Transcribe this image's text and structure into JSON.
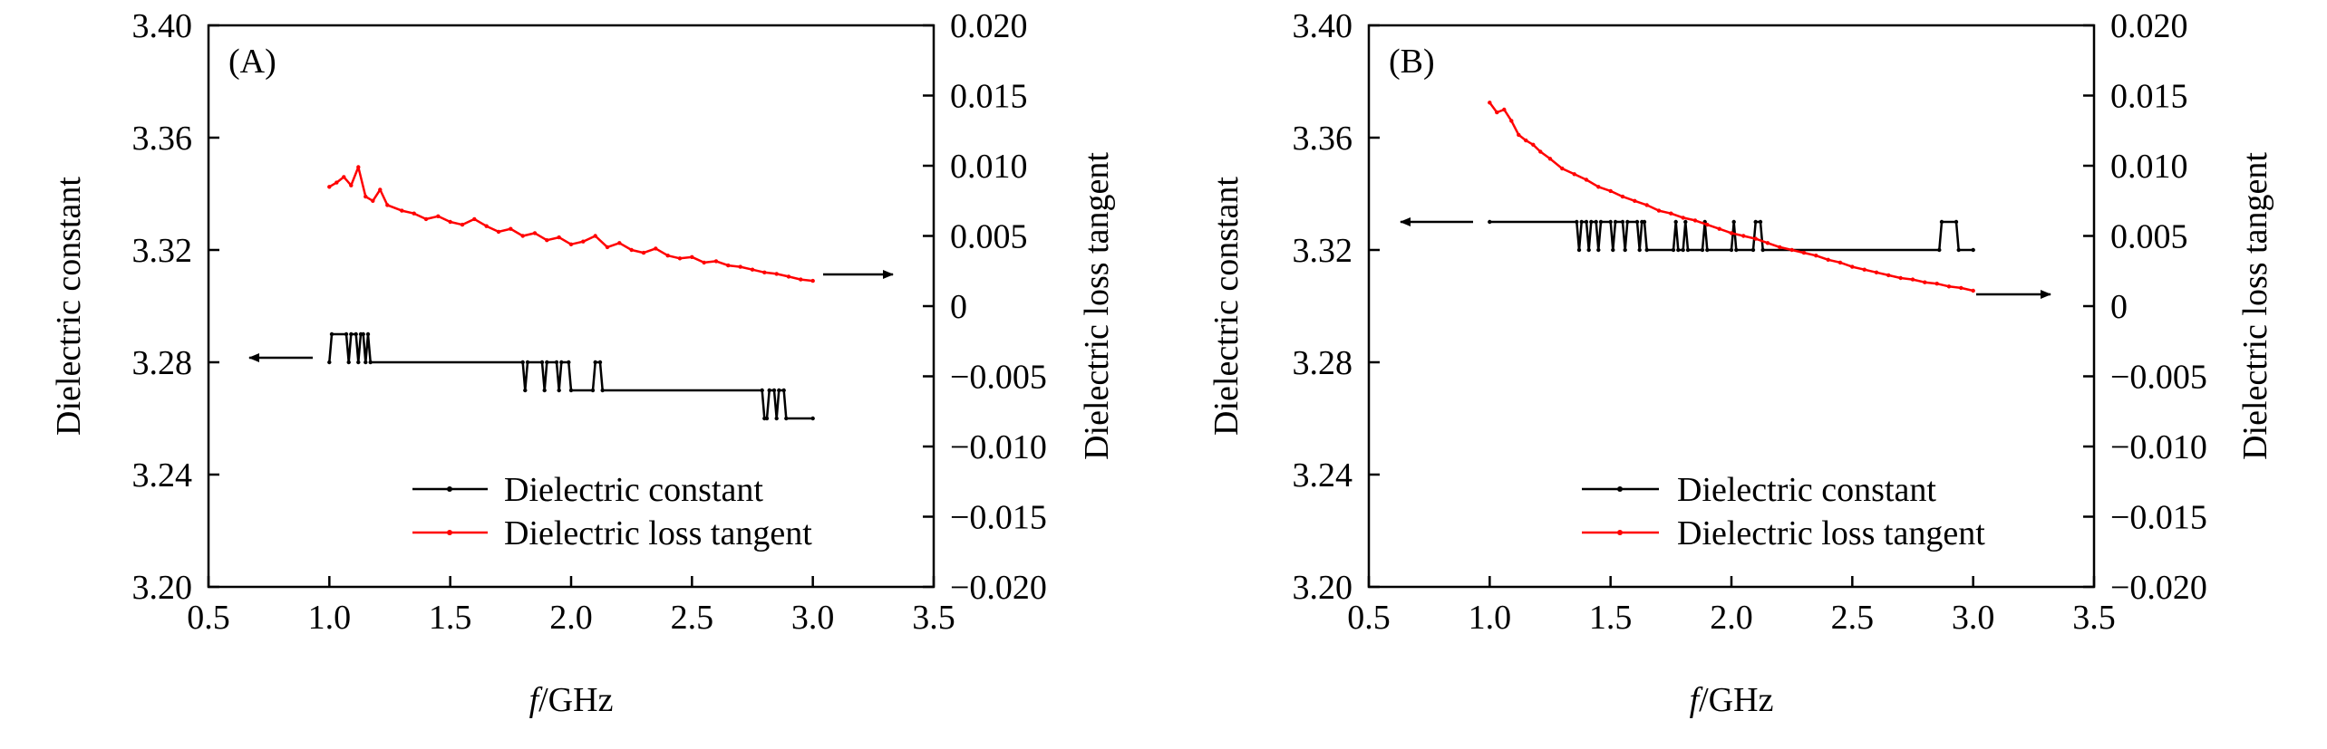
{
  "chart_data": [
    {
      "type": "line",
      "panel_label": "(A)",
      "xlabel_italic": "f",
      "xlabel_rest": "/GHz",
      "ylabel": "Dielectric constant",
      "y2label": "Dielectric loss tangent",
      "xlim": [
        0.5,
        3.5
      ],
      "ylim": [
        3.2,
        3.4
      ],
      "y2lim": [
        -0.02,
        0.02
      ],
      "xticks": [
        "0.5",
        "1.0",
        "1.5",
        "2.0",
        "2.5",
        "3.0",
        "3.5"
      ],
      "yticks": [
        "3.20",
        "3.24",
        "3.28",
        "3.32",
        "3.36",
        "3.40"
      ],
      "y2ticks": [
        "−0.020",
        "−0.015",
        "−0.010",
        "−0.005",
        "0",
        "0.005",
        "0.010",
        "0.015",
        "0.020"
      ],
      "legend_position": "lower-right",
      "series": [
        {
          "name": "Dielectric constant",
          "axis": "left",
          "color": "#000000",
          "points": [
            [
              1.0,
              3.28
            ],
            [
              1.01,
              3.29
            ],
            [
              1.07,
              3.29
            ],
            [
              1.08,
              3.28
            ],
            [
              1.09,
              3.29
            ],
            [
              1.11,
              3.29
            ],
            [
              1.12,
              3.28
            ],
            [
              1.13,
              3.29
            ],
            [
              1.14,
              3.29
            ],
            [
              1.15,
              3.28
            ],
            [
              1.16,
              3.29
            ],
            [
              1.17,
              3.28
            ],
            [
              1.8,
              3.28
            ],
            [
              1.81,
              3.27
            ],
            [
              1.82,
              3.28
            ],
            [
              1.88,
              3.28
            ],
            [
              1.89,
              3.27
            ],
            [
              1.9,
              3.28
            ],
            [
              1.94,
              3.28
            ],
            [
              1.95,
              3.27
            ],
            [
              1.96,
              3.28
            ],
            [
              1.99,
              3.28
            ],
            [
              2.0,
              3.27
            ],
            [
              2.09,
              3.27
            ],
            [
              2.1,
              3.28
            ],
            [
              2.12,
              3.28
            ],
            [
              2.13,
              3.27
            ],
            [
              2.79,
              3.27
            ],
            [
              2.8,
              3.26
            ],
            [
              2.81,
              3.26
            ],
            [
              2.82,
              3.27
            ],
            [
              2.84,
              3.27
            ],
            [
              2.85,
              3.26
            ],
            [
              2.86,
              3.27
            ],
            [
              2.88,
              3.27
            ],
            [
              2.89,
              3.26
            ],
            [
              3.0,
              3.26
            ]
          ]
        },
        {
          "name": "Dielectric loss tangent",
          "axis": "right",
          "color": "#ff0000",
          "points": [
            [
              1.0,
              0.0085
            ],
            [
              1.03,
              0.0088
            ],
            [
              1.06,
              0.0092
            ],
            [
              1.09,
              0.0086
            ],
            [
              1.12,
              0.0099
            ],
            [
              1.15,
              0.0078
            ],
            [
              1.18,
              0.0075
            ],
            [
              1.21,
              0.0083
            ],
            [
              1.24,
              0.0072
            ],
            [
              1.3,
              0.0068
            ],
            [
              1.35,
              0.0066
            ],
            [
              1.4,
              0.0062
            ],
            [
              1.45,
              0.0064
            ],
            [
              1.5,
              0.006
            ],
            [
              1.55,
              0.0058
            ],
            [
              1.6,
              0.0062
            ],
            [
              1.65,
              0.0057
            ],
            [
              1.7,
              0.0053
            ],
            [
              1.75,
              0.0055
            ],
            [
              1.8,
              0.005
            ],
            [
              1.85,
              0.0052
            ],
            [
              1.9,
              0.0047
            ],
            [
              1.95,
              0.0049
            ],
            [
              2.0,
              0.0044
            ],
            [
              2.05,
              0.0046
            ],
            [
              2.1,
              0.005
            ],
            [
              2.15,
              0.0042
            ],
            [
              2.2,
              0.0045
            ],
            [
              2.25,
              0.004
            ],
            [
              2.3,
              0.0038
            ],
            [
              2.35,
              0.0041
            ],
            [
              2.4,
              0.0036
            ],
            [
              2.45,
              0.0034
            ],
            [
              2.5,
              0.0035
            ],
            [
              2.55,
              0.0031
            ],
            [
              2.6,
              0.0032
            ],
            [
              2.65,
              0.0029
            ],
            [
              2.7,
              0.0028
            ],
            [
              2.75,
              0.0026
            ],
            [
              2.8,
              0.0024
            ],
            [
              2.85,
              0.0023
            ],
            [
              2.9,
              0.0021
            ],
            [
              2.95,
              0.0019
            ],
            [
              3.0,
              0.0018
            ]
          ]
        }
      ]
    },
    {
      "type": "line",
      "panel_label": "(B)",
      "xlabel_italic": "f",
      "xlabel_rest": "/GHz",
      "ylabel": "Dielectric constant",
      "y2label": "Dielectric loss tangent",
      "xlim": [
        0.5,
        3.5
      ],
      "ylim": [
        3.2,
        3.4
      ],
      "y2lim": [
        -0.02,
        0.02
      ],
      "xticks": [
        "0.5",
        "1.0",
        "1.5",
        "2.0",
        "2.5",
        "3.0",
        "3.5"
      ],
      "yticks": [
        "3.20",
        "3.24",
        "3.28",
        "3.32",
        "3.36",
        "3.40"
      ],
      "y2ticks": [
        "−0.020",
        "−0.015",
        "−0.010",
        "−0.005",
        "0",
        "0.005",
        "0.010",
        "0.015",
        "0.020"
      ],
      "legend_position": "lower-right",
      "series": [
        {
          "name": "Dielectric constant",
          "axis": "left",
          "color": "#000000",
          "points": [
            [
              1.0,
              3.33
            ],
            [
              1.36,
              3.33
            ],
            [
              1.37,
              3.32
            ],
            [
              1.38,
              3.33
            ],
            [
              1.4,
              3.33
            ],
            [
              1.41,
              3.32
            ],
            [
              1.42,
              3.33
            ],
            [
              1.44,
              3.33
            ],
            [
              1.45,
              3.32
            ],
            [
              1.46,
              3.33
            ],
            [
              1.5,
              3.33
            ],
            [
              1.51,
              3.32
            ],
            [
              1.52,
              3.33
            ],
            [
              1.55,
              3.33
            ],
            [
              1.56,
              3.32
            ],
            [
              1.57,
              3.33
            ],
            [
              1.61,
              3.33
            ],
            [
              1.62,
              3.32
            ],
            [
              1.63,
              3.33
            ],
            [
              1.64,
              3.33
            ],
            [
              1.65,
              3.32
            ],
            [
              1.76,
              3.32
            ],
            [
              1.77,
              3.33
            ],
            [
              1.78,
              3.32
            ],
            [
              1.8,
              3.32
            ],
            [
              1.81,
              3.33
            ],
            [
              1.82,
              3.32
            ],
            [
              1.88,
              3.32
            ],
            [
              1.89,
              3.33
            ],
            [
              1.9,
              3.32
            ],
            [
              2.0,
              3.32
            ],
            [
              2.01,
              3.33
            ],
            [
              2.02,
              3.32
            ],
            [
              2.09,
              3.32
            ],
            [
              2.1,
              3.33
            ],
            [
              2.12,
              3.33
            ],
            [
              2.13,
              3.32
            ],
            [
              2.86,
              3.32
            ],
            [
              2.87,
              3.33
            ],
            [
              2.93,
              3.33
            ],
            [
              2.94,
              3.32
            ],
            [
              3.0,
              3.32
            ]
          ]
        },
        {
          "name": "Dielectric loss tangent",
          "axis": "right",
          "color": "#ff0000",
          "points": [
            [
              1.0,
              0.0145
            ],
            [
              1.03,
              0.0138
            ],
            [
              1.06,
              0.014
            ],
            [
              1.09,
              0.0132
            ],
            [
              1.12,
              0.0122
            ],
            [
              1.15,
              0.0118
            ],
            [
              1.18,
              0.0115
            ],
            [
              1.21,
              0.011
            ],
            [
              1.25,
              0.0105
            ],
            [
              1.3,
              0.0098
            ],
            [
              1.35,
              0.0094
            ],
            [
              1.4,
              0.009
            ],
            [
              1.45,
              0.0085
            ],
            [
              1.5,
              0.0082
            ],
            [
              1.55,
              0.0078
            ],
            [
              1.6,
              0.0075
            ],
            [
              1.65,
              0.0072
            ],
            [
              1.7,
              0.0068
            ],
            [
              1.75,
              0.0066
            ],
            [
              1.8,
              0.0063
            ],
            [
              1.85,
              0.0061
            ],
            [
              1.9,
              0.0058
            ],
            [
              1.95,
              0.0055
            ],
            [
              2.0,
              0.0052
            ],
            [
              2.05,
              0.005
            ],
            [
              2.1,
              0.0048
            ],
            [
              2.15,
              0.0045
            ],
            [
              2.2,
              0.0042
            ],
            [
              2.25,
              0.004
            ],
            [
              2.3,
              0.0038
            ],
            [
              2.35,
              0.0036
            ],
            [
              2.4,
              0.0033
            ],
            [
              2.45,
              0.0031
            ],
            [
              2.5,
              0.0028
            ],
            [
              2.55,
              0.0026
            ],
            [
              2.6,
              0.0024
            ],
            [
              2.65,
              0.0022
            ],
            [
              2.7,
              0.002
            ],
            [
              2.75,
              0.0019
            ],
            [
              2.8,
              0.0017
            ],
            [
              2.85,
              0.0016
            ],
            [
              2.9,
              0.0014
            ],
            [
              2.95,
              0.0013
            ],
            [
              3.0,
              0.0011
            ]
          ]
        }
      ]
    }
  ]
}
